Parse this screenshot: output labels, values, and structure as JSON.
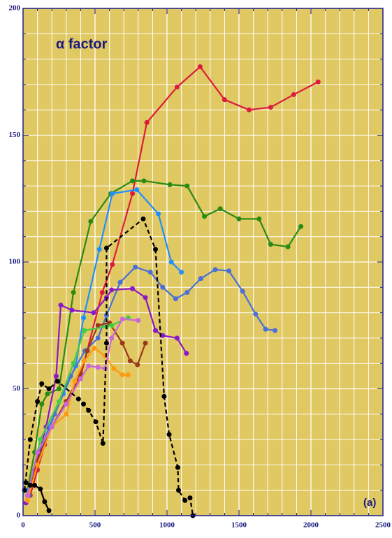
{
  "chart_data": {
    "type": "line",
    "title": "α factor",
    "annotation": "(a)",
    "xlim": [
      0,
      2500
    ],
    "xticks": [
      0,
      500,
      1000,
      1500,
      2000,
      2500
    ],
    "ylim": [
      0,
      200
    ],
    "yticks": [
      0,
      50,
      100,
      150,
      200
    ],
    "grid": true,
    "minor_divisions": 5,
    "series": [
      {
        "color": "#dc1c3c",
        "x": [
          50,
          100,
          150,
          200,
          300,
          400,
          550,
          620,
          760,
          860,
          1070,
          1230,
          1400,
          1570,
          1720,
          1880,
          2050
        ],
        "values": [
          8,
          18,
          28,
          35,
          45,
          55,
          88,
          99,
          127,
          155,
          169,
          177,
          164,
          160,
          161,
          166,
          171
        ]
      },
      {
        "color": "#2a8a14",
        "x": [
          30,
          80,
          130,
          170,
          250,
          350,
          470,
          610,
          760,
          840,
          1020,
          1140,
          1260,
          1370,
          1500,
          1640,
          1720,
          1840,
          1930
        ],
        "values": [
          10,
          25,
          44,
          48,
          50,
          88,
          116,
          127,
          132,
          132,
          130.5,
          130,
          118,
          121,
          117,
          117,
          107,
          106,
          114
        ]
      },
      {
        "color": "#1e90ff",
        "x": [
          35,
          100,
          180,
          280,
          365,
          420,
          530,
          620,
          790,
          940,
          1030,
          1100
        ],
        "values": [
          10,
          22,
          35,
          48,
          59,
          78,
          105,
          127,
          128.5,
          119,
          100,
          96
        ]
      },
      {
        "color": "#4a6fd8",
        "x": [
          40,
          120,
          220,
          330,
          430,
          520,
          580,
          675,
          780,
          885,
          970,
          1060,
          1140,
          1235,
          1335,
          1430,
          1525,
          1615,
          1685,
          1750
        ],
        "values": [
          8,
          25,
          40,
          55,
          65,
          70,
          79,
          92,
          98,
          96,
          90,
          85.5,
          88,
          93.5,
          97,
          96.5,
          88.5,
          79.5,
          73.5,
          73
        ]
      },
      {
        "color": "#8a18c8",
        "x": [
          20,
          80,
          160,
          230,
          262,
          340,
          490,
          580,
          615,
          760,
          850,
          920,
          970,
          1070,
          1135
        ],
        "values": [
          5,
          18,
          35,
          55,
          83,
          81,
          80,
          86,
          89,
          89.5,
          86,
          73,
          71,
          70,
          64
        ]
      },
      {
        "color": "#9a3a1a",
        "x": [
          30,
          100,
          200,
          300,
          400,
          447,
          520,
          600,
          690,
          745,
          795,
          850
        ],
        "values": [
          6,
          22,
          35,
          45,
          56,
          65,
          75,
          76,
          68,
          61,
          59.5,
          68
        ]
      },
      {
        "color": "#44cc44",
        "x": [
          30,
          120,
          250,
          350,
          425,
          580,
          615,
          730
        ],
        "values": [
          8,
          30,
          45,
          60,
          73,
          74.5,
          75,
          78
        ]
      },
      {
        "color": "#ff9a10",
        "x": [
          30,
          100,
          200,
          300,
          360,
          425,
          495,
          570,
          630,
          690,
          730
        ],
        "values": [
          6,
          20,
          35,
          40,
          53,
          61,
          66,
          63,
          58,
          55.5,
          55.5
        ]
      },
      {
        "color": "#cc66dd",
        "x": [
          30,
          100,
          200,
          300,
          400,
          455,
          520,
          570,
          615,
          690,
          800
        ],
        "values": [
          8,
          25,
          35,
          44,
          54,
          59,
          58.5,
          58,
          70,
          77.5,
          77
        ]
      },
      {
        "color": "#000000",
        "dash": true,
        "x": [
          10,
          50,
          100,
          130,
          180,
          240,
          385,
          420,
          455,
          505,
          555,
          580,
          580,
          835,
          920,
          980,
          1015,
          1075,
          1080,
          1125,
          1160,
          1180
        ],
        "values": [
          10,
          30,
          45,
          52,
          50,
          53,
          46,
          44,
          41.5,
          37,
          28.5,
          68,
          105.5,
          117,
          105,
          47,
          32,
          19,
          10,
          6,
          7,
          0
        ]
      },
      {
        "color": "#000000",
        "x": [
          20,
          50,
          80,
          120,
          150,
          180
        ],
        "values": [
          13,
          12,
          12,
          10.5,
          5.5,
          2
        ]
      }
    ]
  }
}
